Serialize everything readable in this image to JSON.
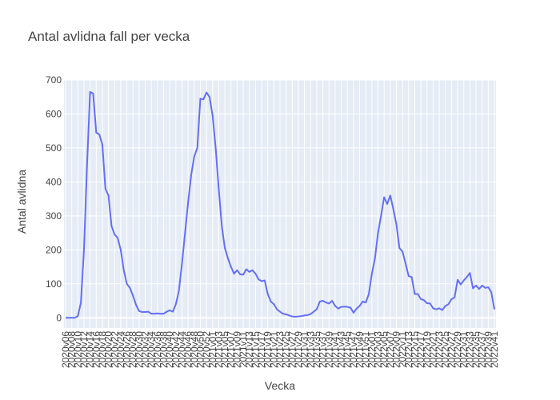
{
  "chart_data": {
    "type": "line",
    "title": "Antal avlidna fall per vecka",
    "x_label": "Vecka",
    "y_label": "Antal avlidna",
    "categories": [
      "2020v06",
      null,
      "2020v08",
      null,
      "2020v10",
      null,
      "2020v12",
      null,
      "2020v14",
      null,
      "2020v16",
      null,
      "2020v18",
      null,
      "2020v20",
      null,
      "2020v22",
      null,
      "2020v24",
      null,
      "2020v26",
      null,
      "2020v28",
      null,
      "2020v30",
      null,
      "2020v32",
      null,
      "2020v34",
      null,
      "2020v36",
      null,
      "2020v38",
      null,
      "2020v40",
      null,
      "2020v42",
      null,
      "2020v44",
      null,
      "2020v46",
      null,
      "2020v48",
      null,
      "2020v50",
      null,
      "2020v52",
      null,
      "2021v01",
      null,
      "2021v03",
      null,
      "2021v05",
      null,
      "2021v07",
      null,
      "2021v09",
      null,
      "2021v11",
      null,
      "2021v13",
      null,
      "2021v15",
      null,
      "2021v17",
      null,
      "2021v19",
      null,
      "2021v21",
      null,
      "2021v23",
      null,
      "2021v25",
      null,
      "2021v27",
      null,
      "2021v29",
      null,
      "2021v31",
      null,
      "2021v33",
      null,
      "2021v35",
      null,
      "2021v37",
      null,
      "2021v39",
      null,
      "2021v41",
      null,
      "2021v43",
      null,
      "2021v45",
      null,
      "2021v47",
      null,
      "2021v49",
      null,
      "2021v51",
      null,
      "2022v01",
      null,
      "2022v03",
      null,
      "2022v05",
      null,
      "2022v07",
      null,
      "2022v09",
      null,
      "2022v11",
      null,
      "2022v13",
      null,
      "2022v15",
      null,
      "2022v17",
      null,
      "2022v19",
      null,
      "2022v21",
      null,
      "2022v23",
      null,
      "2022v25",
      null,
      "2022v27",
      null,
      "2022v29",
      null,
      "2022v31",
      null,
      "2022v33",
      null,
      "2022v35",
      null,
      "2022v37",
      null,
      "2022v39",
      null,
      "2022v41"
    ],
    "series": [
      {
        "name": "Antal avlidna",
        "color": "#636efa",
        "values": [
          0,
          0,
          0,
          0,
          5,
          45,
          200,
          450,
          665,
          660,
          545,
          540,
          510,
          380,
          360,
          270,
          245,
          235,
          200,
          140,
          100,
          88,
          65,
          38,
          20,
          17,
          17,
          18,
          12,
          12,
          13,
          12,
          12,
          18,
          22,
          18,
          40,
          80,
          160,
          250,
          340,
          420,
          475,
          500,
          645,
          643,
          663,
          650,
          595,
          500,
          380,
          270,
          205,
          175,
          150,
          130,
          140,
          128,
          127,
          143,
          135,
          140,
          130,
          113,
          108,
          110,
          70,
          48,
          40,
          25,
          18,
          12,
          10,
          7,
          4,
          3,
          4,
          5,
          7,
          8,
          11,
          18,
          25,
          48,
          50,
          45,
          42,
          50,
          35,
          27,
          32,
          33,
          32,
          30,
          15,
          27,
          35,
          48,
          45,
          70,
          130,
          175,
          250,
          300,
          355,
          335,
          360,
          320,
          275,
          205,
          195,
          160,
          123,
          120,
          70,
          70,
          55,
          52,
          43,
          42,
          28,
          25,
          28,
          23,
          35,
          40,
          55,
          60,
          112,
          98,
          110,
          120,
          132,
          87,
          95,
          85,
          95,
          88,
          90,
          75,
          25
        ]
      }
    ],
    "ylim": [
      -30,
      700
    ],
    "yticks": [
      0,
      100,
      200,
      300,
      400,
      500,
      600,
      700
    ],
    "grid": true
  }
}
